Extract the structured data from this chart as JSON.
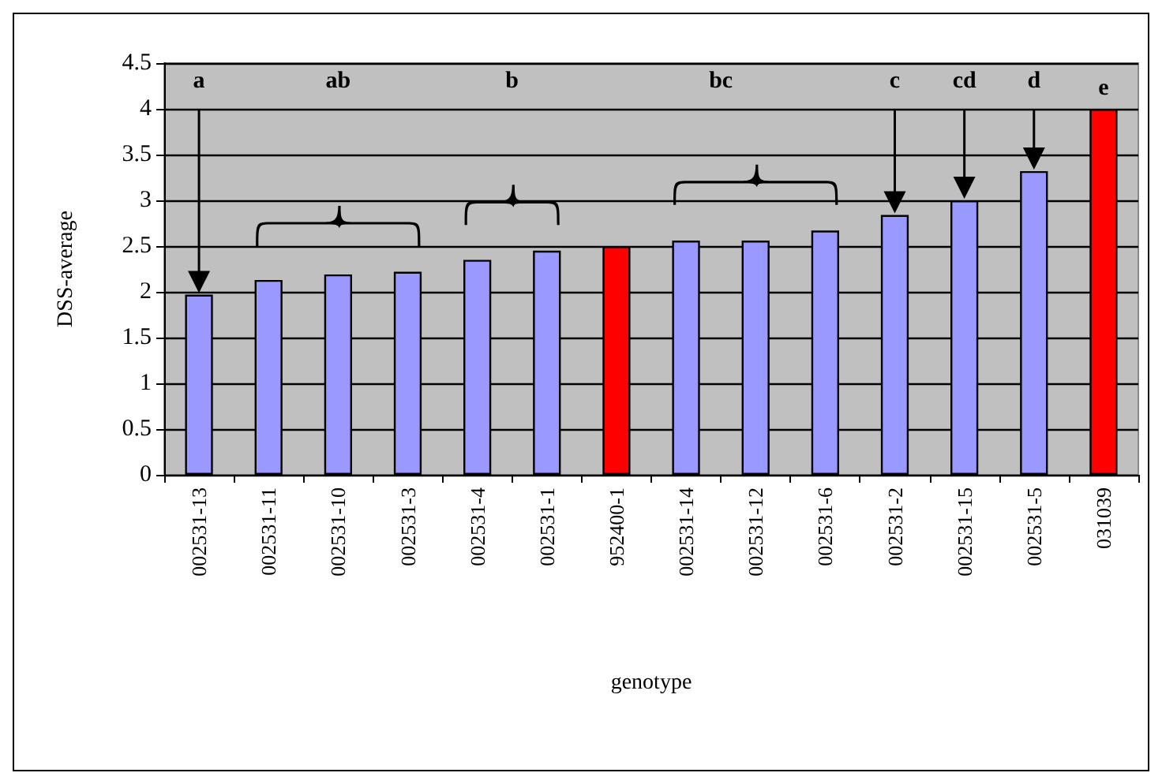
{
  "chart_data": {
    "type": "bar",
    "xlabel": "genotype",
    "ylabel": "DSS-average",
    "categories": [
      "002531-13",
      "002531-11",
      "002531-10",
      "002531-3",
      "002531-4",
      "002531-1",
      "952400-1",
      "002531-14",
      "002531-12",
      "002531-6",
      "002531-2",
      "002531-15",
      "002531-5",
      "031039"
    ],
    "values": [
      1.97,
      2.13,
      2.19,
      2.22,
      2.35,
      2.45,
      2.5,
      2.56,
      2.56,
      2.67,
      2.84,
      3.0,
      3.32,
      4.0
    ],
    "colors": [
      "#9999ff",
      "#9999ff",
      "#9999ff",
      "#9999ff",
      "#9999ff",
      "#9999ff",
      "#ff0000",
      "#9999ff",
      "#9999ff",
      "#9999ff",
      "#9999ff",
      "#9999ff",
      "#9999ff",
      "#ff0000"
    ],
    "ylim": [
      0,
      4.5
    ],
    "yticks": [
      0,
      0.5,
      1,
      1.5,
      2,
      2.5,
      3,
      3.5,
      4,
      4.5
    ],
    "grid": "y",
    "annotations": [
      "a",
      "ab",
      "b",
      "bc",
      "c",
      "cd",
      "d",
      "e"
    ]
  }
}
